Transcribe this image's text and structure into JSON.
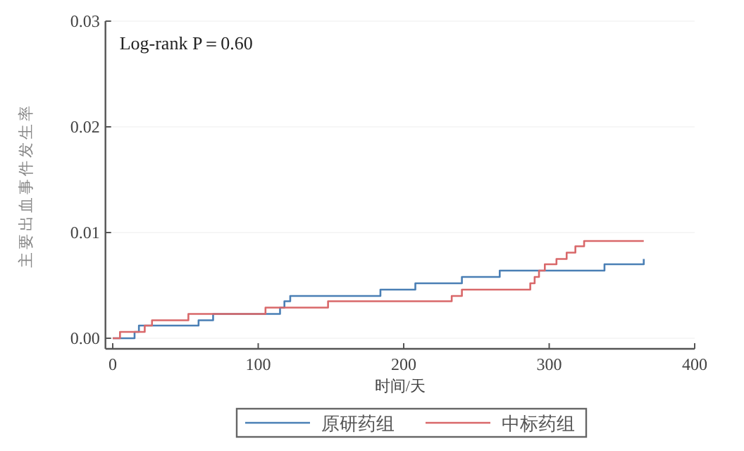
{
  "chart_data": {
    "type": "step",
    "xlabel": "时间/天",
    "ylabel": "主要出血事件发生率",
    "annotations": [
      "Log-rank P＝0.60"
    ],
    "xlim": [
      -5,
      400
    ],
    "xticks": [
      0,
      100,
      200,
      300,
      400
    ],
    "ylim": [
      -0.001,
      0.03
    ],
    "yticks": [
      {
        "value": 0,
        "label": "0.00"
      },
      {
        "value": 0.01,
        "label": "0.01"
      },
      {
        "value": 0.02,
        "label": "0.02"
      },
      {
        "value": 0.03,
        "label": "0.03"
      }
    ],
    "grid": "y",
    "legend": "bottom",
    "line_style": "solid",
    "marker": "none",
    "series": [
      {
        "name": "原研药组",
        "color": "#4a7fb5",
        "x": [
          0,
          15,
          18,
          59,
          69,
          115,
          118,
          122,
          184,
          208,
          240,
          266,
          338,
          364,
          365
        ],
        "values": [
          0,
          0.0006,
          0.0012,
          0.0017,
          0.0023,
          0.0029,
          0.0035,
          0.004,
          0.0046,
          0.0052,
          0.0058,
          0.0064,
          0.007,
          0.007,
          0.0075
        ]
      },
      {
        "name": "中标药组",
        "color": "#d9686a",
        "x": [
          0,
          5,
          22,
          27,
          52,
          105,
          148,
          233,
          240,
          287,
          290,
          293,
          297,
          305,
          312,
          318,
          324,
          365
        ],
        "values": [
          0,
          0.0006,
          0.0012,
          0.0017,
          0.0023,
          0.0029,
          0.0035,
          0.004,
          0.0046,
          0.0052,
          0.0058,
          0.0064,
          0.007,
          0.0075,
          0.0081,
          0.0087,
          0.0092,
          0.0092
        ]
      }
    ]
  }
}
